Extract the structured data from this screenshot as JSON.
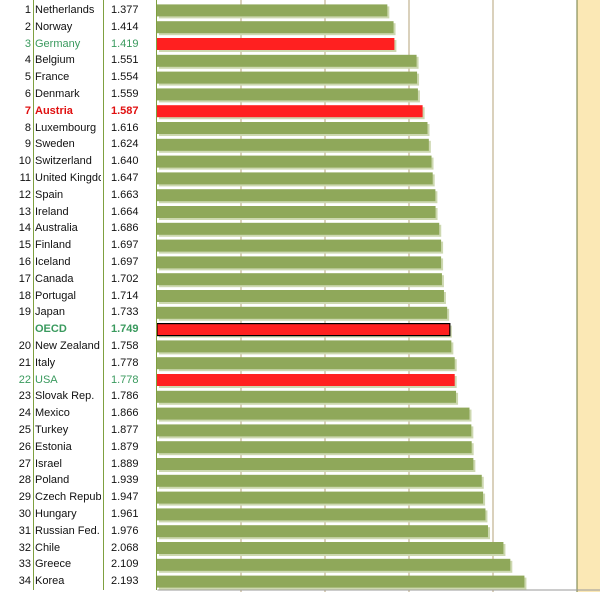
{
  "chart_data": {
    "type": "bar",
    "orientation": "horizontal",
    "rows": [
      {
        "rank": "1",
        "country": "Netherlands",
        "value": 1.377,
        "highlight": "none"
      },
      {
        "rank": "2",
        "country": "Norway",
        "value": 1.414,
        "highlight": "none"
      },
      {
        "rank": "3",
        "country": "Germany",
        "value": 1.419,
        "highlight": "red-green"
      },
      {
        "rank": "4",
        "country": "Belgium",
        "value": 1.551,
        "highlight": "none"
      },
      {
        "rank": "5",
        "country": "France",
        "value": 1.554,
        "highlight": "none"
      },
      {
        "rank": "6",
        "country": "Denmark",
        "value": 1.559,
        "highlight": "none"
      },
      {
        "rank": "7",
        "country": "Austria",
        "value": 1.587,
        "highlight": "red-bold"
      },
      {
        "rank": "8",
        "country": "Luxembourg",
        "value": 1.616,
        "highlight": "none"
      },
      {
        "rank": "9",
        "country": "Sweden",
        "value": 1.624,
        "highlight": "none"
      },
      {
        "rank": "10",
        "country": "Switzerland",
        "value": 1.64,
        "highlight": "none"
      },
      {
        "rank": "11",
        "country": "United Kingdo",
        "value": 1.647,
        "highlight": "none"
      },
      {
        "rank": "12",
        "country": "Spain",
        "value": 1.663,
        "highlight": "none"
      },
      {
        "rank": "13",
        "country": "Ireland",
        "value": 1.664,
        "highlight": "none"
      },
      {
        "rank": "14",
        "country": "Australia",
        "value": 1.686,
        "highlight": "none"
      },
      {
        "rank": "15",
        "country": "Finland",
        "value": 1.697,
        "highlight": "none"
      },
      {
        "rank": "16",
        "country": "Iceland",
        "value": 1.697,
        "highlight": "none"
      },
      {
        "rank": "17",
        "country": "Canada",
        "value": 1.702,
        "highlight": "none"
      },
      {
        "rank": "18",
        "country": "Portugal",
        "value": 1.714,
        "highlight": "none"
      },
      {
        "rank": "19",
        "country": "Japan",
        "value": 1.733,
        "highlight": "none"
      },
      {
        "rank": "",
        "country": "OECD",
        "value": 1.749,
        "highlight": "red-bold-green"
      },
      {
        "rank": "20",
        "country": "New Zealand",
        "value": 1.758,
        "highlight": "none"
      },
      {
        "rank": "21",
        "country": "Italy",
        "value": 1.778,
        "highlight": "none"
      },
      {
        "rank": "22",
        "country": "USA",
        "value": 1.778,
        "highlight": "red-green"
      },
      {
        "rank": "23",
        "country": "Slovak Rep.",
        "value": 1.786,
        "highlight": "none"
      },
      {
        "rank": "24",
        "country": "Mexico",
        "value": 1.866,
        "highlight": "none"
      },
      {
        "rank": "25",
        "country": "Turkey",
        "value": 1.877,
        "highlight": "none"
      },
      {
        "rank": "26",
        "country": "Estonia",
        "value": 1.879,
        "highlight": "none"
      },
      {
        "rank": "27",
        "country": "Israel",
        "value": 1.889,
        "highlight": "none"
      },
      {
        "rank": "28",
        "country": "Poland",
        "value": 1.939,
        "highlight": "none"
      },
      {
        "rank": "29",
        "country": "Czech Republi",
        "value": 1.947,
        "highlight": "none"
      },
      {
        "rank": "30",
        "country": "Hungary",
        "value": 1.961,
        "highlight": "none"
      },
      {
        "rank": "31",
        "country": "Russian Fed.",
        "value": 1.976,
        "highlight": "none"
      },
      {
        "rank": "32",
        "country": "Chile",
        "value": 2.068,
        "highlight": "none"
      },
      {
        "rank": "33",
        "country": "Greece",
        "value": 2.109,
        "highlight": "none"
      },
      {
        "rank": "34",
        "country": "Korea",
        "value": 2.193,
        "highlight": "none"
      }
    ],
    "value_labels": [
      "1.377",
      "1.414",
      "1.419",
      "1.551",
      "1.554",
      "1.559",
      "1.587",
      "1.616",
      "1.624",
      "1.640",
      "1.647",
      "1.663",
      "1.664",
      "1.686",
      "1.697",
      "1.697",
      "1.702",
      "1.714",
      "1.733",
      "1.749",
      "1.758",
      "1.778",
      "1.778",
      "1.786",
      "1.866",
      "1.877",
      "1.879",
      "1.889",
      "1.939",
      "1.947",
      "1.961",
      "1.976",
      "2.068",
      "2.109",
      "2.193"
    ],
    "xlim": [
      0,
      2.5
    ],
    "grid": "vertical",
    "colors": {
      "bar": "#8fa85a",
      "bar_shadow": "#cdd8b0",
      "bar_highlight": "#ff2020",
      "highlight_outline": "#000000",
      "text_green": "#3a9a5e",
      "text_red": "#e01010",
      "grid": "#b5a37a",
      "grid_major": "#6e7a3f",
      "shaded_background": "#fbe8b5"
    }
  }
}
